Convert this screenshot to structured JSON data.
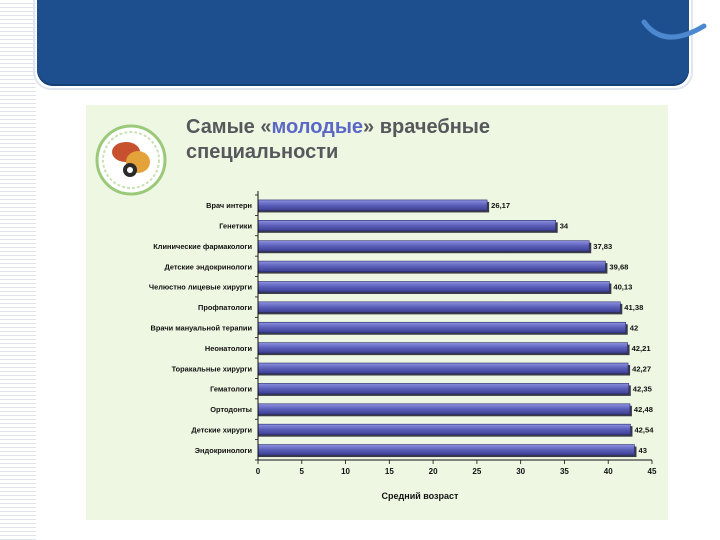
{
  "slide": {
    "title_before": "Самые «",
    "title_highlight": "молодые",
    "title_after": "» врачебные",
    "title_line2": "специальности"
  },
  "chart_data": {
    "type": "bar",
    "orientation": "horizontal",
    "categories": [
      "Врач интерн",
      "Генетики",
      "Клинические фармакологи",
      "Детские эндокринологи",
      "Челюстно лицевые хирурги",
      "Профпатологи",
      "Врачи мануальной терапии",
      "Неонатологи",
      "Торакальные хирурги",
      "Гематологи",
      "Ортодонты",
      "Детские хирурги",
      "Эндокринологи"
    ],
    "values": [
      26.17,
      34,
      37.83,
      39.68,
      40.13,
      41.38,
      42,
      42.21,
      42.27,
      42.35,
      42.48,
      42.54,
      43
    ],
    "value_labels": [
      "26,17",
      "34",
      "37,83",
      "39,68",
      "40,13",
      "41,38",
      "42",
      "42,21",
      "42,27",
      "42,35",
      "42,48",
      "42,54",
      "43"
    ],
    "xticks": [
      0,
      5,
      10,
      15,
      20,
      25,
      30,
      35,
      40,
      45
    ],
    "xlim": [
      0,
      45
    ],
    "xlabel": "Средний возраст",
    "ylabel": "",
    "grid": false,
    "bar_color": "#5b5fb8"
  }
}
